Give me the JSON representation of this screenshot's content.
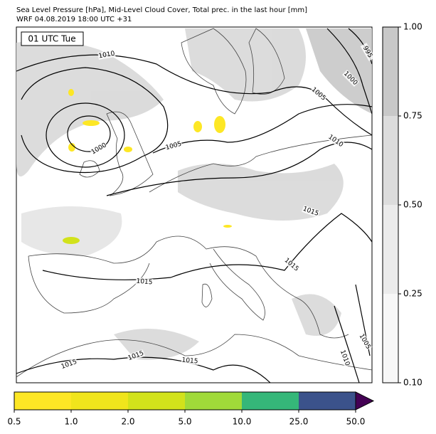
{
  "title": [
    "Sea Level Pressure [hPa], Mid-Level Cloud Cover, Total prec. in the last hour [mm]",
    "WRF 04.08.2019 18:00 UTC +31"
  ],
  "time_label": "01 UTC Tue",
  "cloud_colorbar": {
    "ticks": [
      {
        "value": 0.1,
        "label": "0.10"
      },
      {
        "value": 0.25,
        "label": "0.25"
      },
      {
        "value": 0.5,
        "label": "0.50"
      },
      {
        "value": 0.75,
        "label": "0.75"
      },
      {
        "value": 1,
        "label": "1.00"
      }
    ],
    "colors": [
      "#f7f7f7",
      "#ebebeb",
      "#dcdcdc",
      "#c8c8c8"
    ]
  },
  "precip_colorbar": {
    "ticks": [
      0.5,
      {
        "value": 1,
        "label": "1.0"
      },
      {
        "value": 2,
        "label": "2.0"
      },
      {
        "value": 5,
        "label": "5.0"
      },
      {
        "value": 10,
        "label": "10.0"
      },
      {
        "value": 25,
        "label": "25.0"
      },
      {
        "value": 50,
        "label": "50.0"
      }
    ],
    "colors": [
      "#fde725",
      "#f0e51c",
      "#d2e21b",
      "#a0da39",
      "#35b779",
      "#3b528b"
    ],
    "extend_color": "#440154"
  },
  "isobar_labels": [
    "1010",
    "995",
    "1000",
    "1005",
    "1010",
    "1000",
    "1005",
    "1015",
    "1015",
    "1015",
    "1005",
    "1010",
    "1015",
    "1015",
    "1015"
  ]
}
